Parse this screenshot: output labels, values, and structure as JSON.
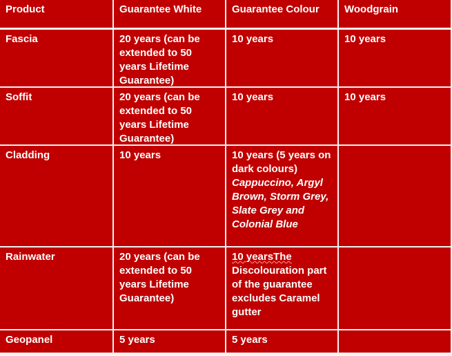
{
  "colors": {
    "cell_bg": "#c00000",
    "text": "#ffffff",
    "grid": "#ffffff"
  },
  "headers": [
    "Product",
    "Guarantee White",
    "Guarantee Colour",
    "Woodgrain"
  ],
  "rows": [
    {
      "product": "Fascia",
      "white": "20 years (can be extended to 50 years Lifetime Guarantee)",
      "colour": "10 years",
      "woodgrain": "10 years"
    },
    {
      "product": "Soffit",
      "white": "20 years (can be extended to 50 years Lifetime Guarantee)",
      "colour": "10 years",
      "woodgrain": "10 years"
    },
    {
      "product": "Cladding",
      "white": "10 years",
      "colour": "10 years (5 years on dark colours)",
      "colour_italic_1": "Cappuccino, Argyl Brown, Storm Grey,",
      "colour_italic_2": "Slate Grey and Colonial Blue",
      "woodgrain": ""
    },
    {
      "product": "Rainwater",
      "white": "20 years (can be extended to 50 years Lifetime Guarantee)",
      "colour_misspelt": "10 yearsThe",
      "colour": "Discolouration part of the guarantee excludes Caramel gutter",
      "woodgrain": ""
    },
    {
      "product": "Geopanel",
      "white": "5 years",
      "colour": "5 years",
      "woodgrain": ""
    }
  ]
}
